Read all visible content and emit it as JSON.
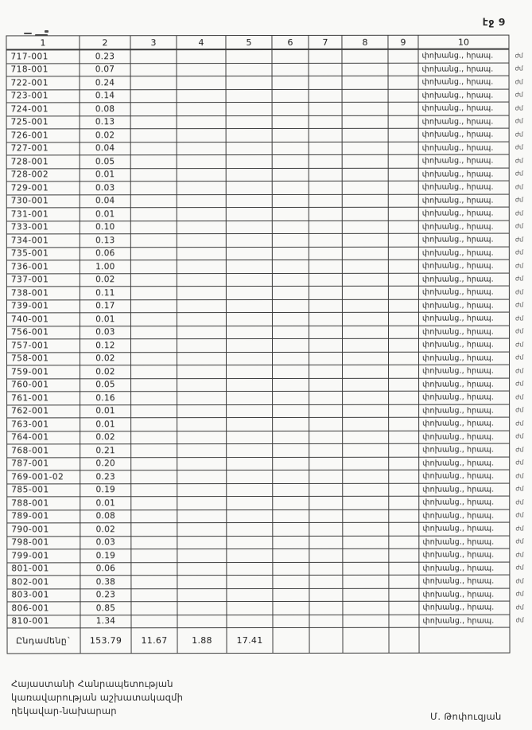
{
  "page": {
    "label": "էջ 9"
  },
  "table": {
    "headers": [
      "1",
      "2",
      "3",
      "4",
      "5",
      "6",
      "7",
      "8",
      "9",
      "10"
    ],
    "rows": [
      {
        "code": "717-001",
        "value": "0.23",
        "note": "փոխանց., հրապ.",
        "annot": "ժմ"
      },
      {
        "code": "718-001",
        "value": "0.07",
        "note": "փոխանց., հրապ.",
        "annot": "ժմ"
      },
      {
        "code": "722-001",
        "value": "0.24",
        "note": "փոխանց., հրապ.",
        "annot": "ժմ"
      },
      {
        "code": "723-001",
        "value": "0.14",
        "note": "փոխանց., հրապ.",
        "annot": "ժմ"
      },
      {
        "code": "724-001",
        "value": "0.08",
        "note": "փոխանց., հրապ.",
        "annot": "ժմ"
      },
      {
        "code": "725-001",
        "value": "0.13",
        "note": "փոխանց., հրապ.",
        "annot": "ժմ"
      },
      {
        "code": "726-001",
        "value": "0.02",
        "note": "փոխանց., հրապ.",
        "annot": "ժմ"
      },
      {
        "code": "727-001",
        "value": "0.04",
        "note": "փոխանց., հրապ.",
        "annot": "ժմ"
      },
      {
        "code": "728-001",
        "value": "0.05",
        "note": "փոխանց., հրապ.",
        "annot": "ժմ"
      },
      {
        "code": "728-002",
        "value": "0.01",
        "note": "փոխանց., հրապ.",
        "annot": "ժմ"
      },
      {
        "code": "729-001",
        "value": "0.03",
        "note": "փոխանց., հրապ.",
        "annot": "ժմ"
      },
      {
        "code": "730-001",
        "value": "0.04",
        "note": "փոխանց., հրապ.",
        "annot": "ժմ"
      },
      {
        "code": "731-001",
        "value": "0.01",
        "note": "փոխանց., հրապ.",
        "annot": "ժմ"
      },
      {
        "code": "733-001",
        "value": "0.10",
        "note": "փոխանց., հրապ.",
        "annot": "ժմ"
      },
      {
        "code": "734-001",
        "value": "0.13",
        "note": "փոխանց., հրապ.",
        "annot": "ժմ"
      },
      {
        "code": "735-001",
        "value": "0.06",
        "note": "փոխանց., հրապ.",
        "annot": "ժմ"
      },
      {
        "code": "736-001",
        "value": "1.00",
        "note": "փոխանց., հրապ.",
        "annot": "ժմ"
      },
      {
        "code": "737-001",
        "value": "0.02",
        "note": "փոխանց., հրապ.",
        "annot": "ժմ"
      },
      {
        "code": "738-001",
        "value": "0.11",
        "note": "փոխանց., հրապ.",
        "annot": "ժմ"
      },
      {
        "code": "739-001",
        "value": "0.17",
        "note": "փոխանց., հրապ.",
        "annot": "ժմ"
      },
      {
        "code": "740-001",
        "value": "0.01",
        "note": "փոխանց., հրապ.",
        "annot": "ժմ"
      },
      {
        "code": "756-001",
        "value": "0.03",
        "note": "փոխանց., հրապ.",
        "annot": "ժմ"
      },
      {
        "code": "757-001",
        "value": "0.12",
        "note": "փոխանց., հրապ.",
        "annot": "ժմ"
      },
      {
        "code": "758-001",
        "value": "0.02",
        "note": "փոխանց., հրապ.",
        "annot": "ժմ"
      },
      {
        "code": "759-001",
        "value": "0.02",
        "note": "փոխանց., հրապ.",
        "annot": "ժմ"
      },
      {
        "code": "760-001",
        "value": "0.05",
        "note": "փոխանց., հրապ.",
        "annot": "ժմ"
      },
      {
        "code": "761-001",
        "value": "0.16",
        "note": "փոխանց., հրապ.",
        "annot": "ժմ"
      },
      {
        "code": "762-001",
        "value": "0.01",
        "note": "փոխանց., հրապ.",
        "annot": "ժմ"
      },
      {
        "code": "763-001",
        "value": "0.01",
        "note": "փոխանց., հրապ.",
        "annot": "ժմ"
      },
      {
        "code": "764-001",
        "value": "0.02",
        "note": "փոխանց., հրապ.",
        "annot": "ժմ"
      },
      {
        "code": "768-001",
        "value": "0.21",
        "note": "փոխանց., հրապ.",
        "annot": "ժմ"
      },
      {
        "code": "787-001",
        "value": "0.20",
        "note": "փոխանց., հրապ.",
        "annot": "ժմ"
      },
      {
        "code": "769-001-02",
        "value": "0.23",
        "note": "փոխանց., հրապ.",
        "annot": "ժմ"
      },
      {
        "code": "785-001",
        "value": "0.19",
        "note": "փոխանց., հրապ.",
        "annot": "ժմ"
      },
      {
        "code": "788-001",
        "value": "0.01",
        "note": "փոխանց., հրապ.",
        "annot": "ժմ"
      },
      {
        "code": "789-001",
        "value": "0.08",
        "note": "փոխանց., հրապ.",
        "annot": "ժմ"
      },
      {
        "code": "790-001",
        "value": "0.02",
        "note": "փոխանց., հրապ.",
        "annot": "ժմ"
      },
      {
        "code": "798-001",
        "value": "0.03",
        "note": "փոխանց., հրապ.",
        "annot": "ժմ"
      },
      {
        "code": "799-001",
        "value": "0.19",
        "note": "փոխանց., հրապ.",
        "annot": "ժմ"
      },
      {
        "code": "801-001",
        "value": "0.06",
        "note": "փոխանց., հրապ.",
        "annot": "ժմ"
      },
      {
        "code": "802-001",
        "value": "0.38",
        "note": "փոխանց., հրապ.",
        "annot": "ժմ"
      },
      {
        "code": "803-001",
        "value": "0.23",
        "note": "փոխանց., հրապ.",
        "annot": "ժմ"
      },
      {
        "code": "806-001",
        "value": "0.85",
        "note": "փոխանց., հրապ.",
        "annot": "ժմ"
      },
      {
        "code": "810-001",
        "value": "1.34",
        "note": "փոխանց., հրապ.",
        "annot": "ժմ"
      }
    ],
    "totals": {
      "label": "Ընդամենը`",
      "values": [
        "153.79",
        "11.67",
        "1.88",
        "17.41"
      ]
    }
  },
  "footer": {
    "lines": [
      "Հայաստանի Հանրապետության",
      "կառավարության աշխատակազմի",
      "ղեկավար-նախարար"
    ],
    "signature": "Մ. Թոփուզյան"
  }
}
